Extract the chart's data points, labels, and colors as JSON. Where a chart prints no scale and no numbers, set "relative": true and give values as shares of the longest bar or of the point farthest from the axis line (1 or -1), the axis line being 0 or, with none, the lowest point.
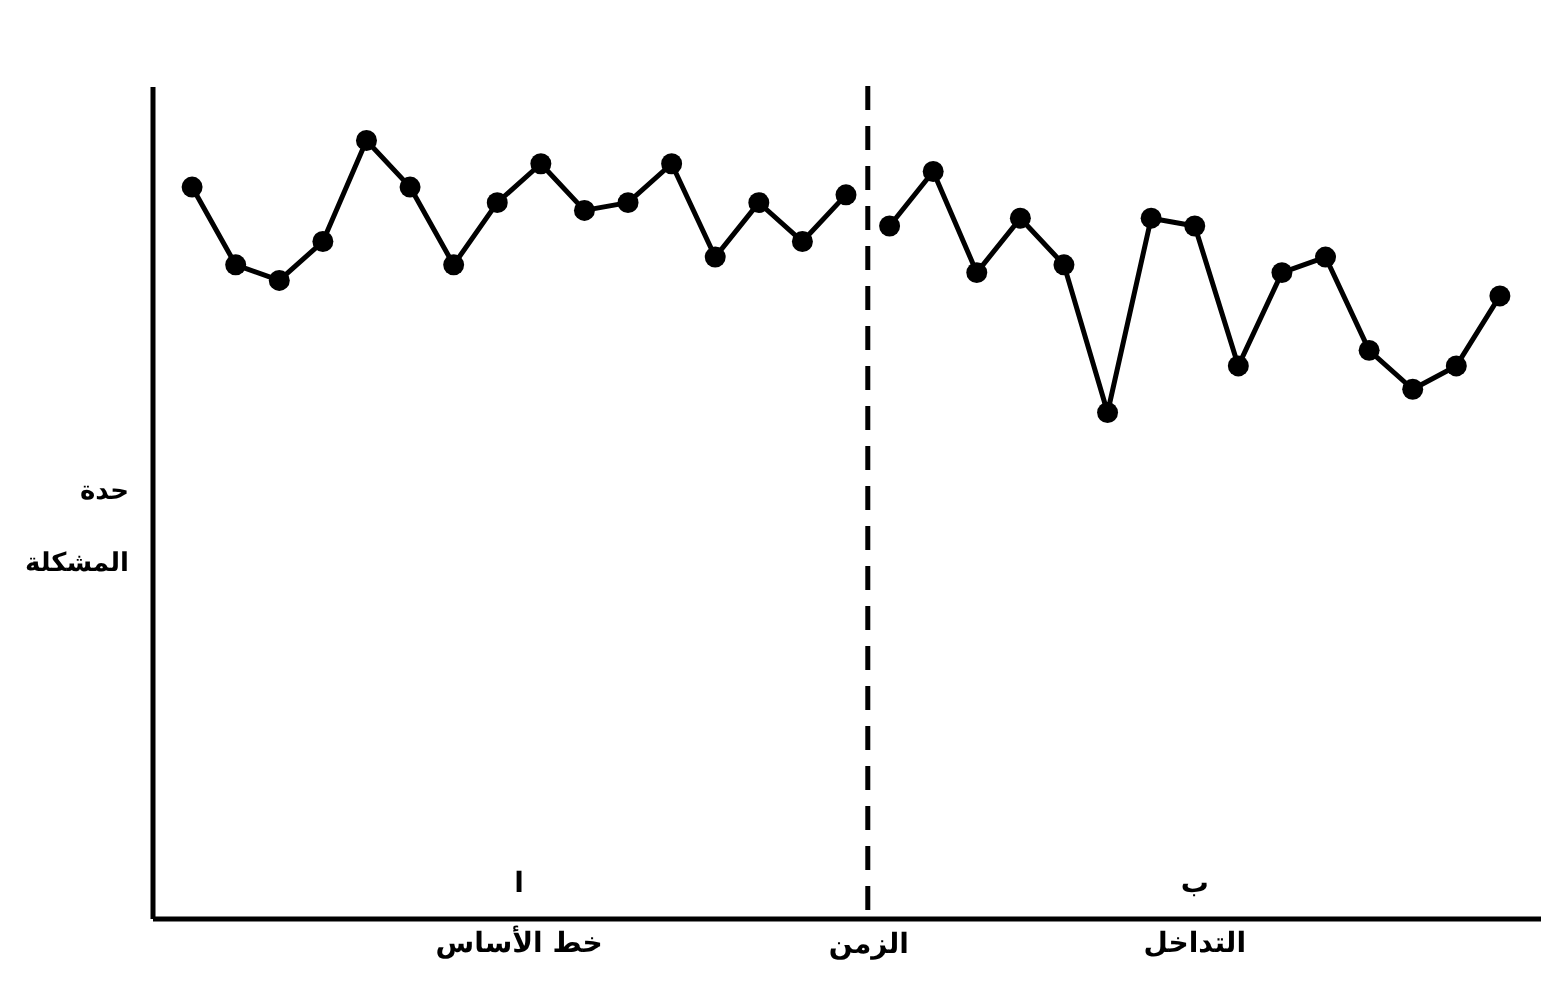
{
  "chart_data": {
    "type": "line",
    "relative": true,
    "xlabel": "الزمن",
    "ylabel": "حدة المشكلة",
    "marker": "circle",
    "line_style": "solid",
    "categories": [
      null,
      null,
      null,
      null,
      null,
      null,
      null,
      null,
      null,
      null,
      null,
      null,
      null,
      null,
      null,
      null,
      null,
      null,
      null,
      null,
      null,
      null,
      null,
      null,
      null,
      null,
      null,
      null,
      null,
      null,
      null
    ],
    "series": [
      {
        "color": "#000000",
        "values": [
          0.94,
          0.84,
          0.82,
          0.87,
          1.0,
          0.94,
          0.84,
          0.92,
          0.97,
          0.91,
          0.92,
          0.97,
          0.85,
          0.92,
          0.87,
          0.93,
          null,
          null,
          null,
          null,
          null,
          null,
          null,
          null,
          null,
          null,
          null,
          null,
          null,
          null,
          null
        ]
      },
      {
        "color": "#000000",
        "values": [
          null,
          null,
          null,
          null,
          null,
          null,
          null,
          null,
          null,
          null,
          null,
          null,
          null,
          null,
          null,
          null,
          0.89,
          0.96,
          0.83,
          0.9,
          0.84,
          0.65,
          0.9,
          0.89,
          0.71,
          0.83,
          0.85,
          0.73,
          0.68,
          0.71,
          0.8
        ]
      }
    ],
    "annotations": [
      "ا",
      "ب",
      "خط الأساس",
      "التداخل"
    ]
  }
}
